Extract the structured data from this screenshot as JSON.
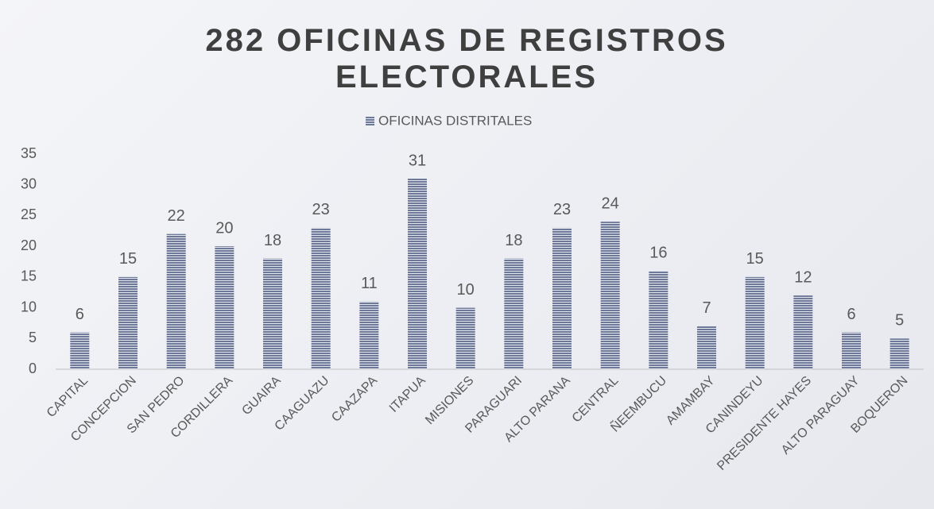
{
  "chart_data": {
    "type": "bar",
    "title": "282 OFICINAS DE REGISTROS ELECTORALES",
    "series": [
      {
        "name": "OFICINAS DISTRITALES",
        "color": "#6e7899",
        "values": [
          6,
          15,
          22,
          20,
          18,
          23,
          11,
          31,
          10,
          18,
          23,
          24,
          16,
          7,
          15,
          12,
          6,
          5
        ]
      }
    ],
    "categories": [
      "CAPITAL",
      "CONCEPCION",
      "SAN PEDRO",
      "CORDILLERA",
      "GUAIRA",
      "CAAGUAZU",
      "CAAZAPA",
      "ITAPUA",
      "MISIONES",
      "PARAGUARI",
      "ALTO PARANA",
      "CENTRAL",
      "ÑEEMBUCU",
      "AMAMBAY",
      "CANINDEYU",
      "PRESIDENTE HAYES",
      "ALTO PARAGUAY",
      "BOQUERON"
    ],
    "ylim": [
      0,
      35
    ],
    "yticks": [
      0,
      5,
      10,
      15,
      20,
      25,
      30,
      35
    ],
    "grid": false,
    "legend": "top"
  }
}
